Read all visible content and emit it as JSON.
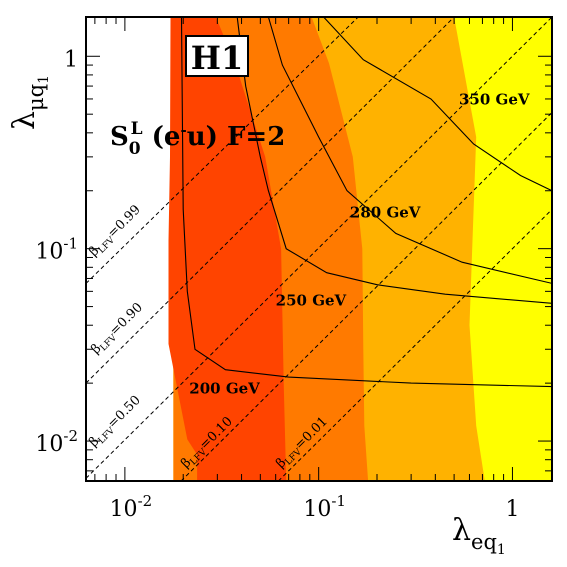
{
  "chart_data": {
    "type": "exclusion-region plot",
    "xscale": "log",
    "yscale": "log",
    "xlim": [
      0.0063,
      1.6
    ],
    "ylim": [
      0.0062,
      1.6
    ],
    "x_ticks": [
      {
        "value": 0.01,
        "mantissa": "10",
        "exp": "-2"
      },
      {
        "value": 0.1,
        "mantissa": "10",
        "exp": "-1"
      },
      {
        "value": 1,
        "mantissa": "1",
        "exp": ""
      }
    ],
    "y_ticks": [
      {
        "value": 0.01,
        "mantissa": "10",
        "exp": "-2"
      },
      {
        "value": 0.1,
        "mantissa": "10",
        "exp": "-1"
      },
      {
        "value": 1,
        "mantissa": "1",
        "exp": ""
      }
    ],
    "xlabel": {
      "main": "λ",
      "sub": "eq",
      "subsub": "1"
    },
    "ylabel": {
      "main": "λ",
      "sub": "μq",
      "subsub": "1"
    },
    "logo": "H1",
    "process": {
      "s": "S",
      "s_sub": "0",
      "s_sup": "L",
      "paren_open": " (e",
      "e_sup": "-",
      "rest": "u) F=2"
    },
    "colors": {
      "red": "#ff4400",
      "dark_orange": "#ff7a00",
      "orange": "#ffb200",
      "yellow": "#ffff00",
      "line": "#000000"
    },
    "regions": [
      {
        "color": "yellow",
        "points": [
          [
            0.0178,
            1.6
          ],
          [
            1.6,
            1.6
          ],
          [
            1.6,
            0.0062
          ],
          [
            0.0178,
            0.0062
          ]
        ]
      },
      {
        "color": "orange",
        "points": [
          [
            0.0178,
            1.6
          ],
          [
            0.5,
            1.6
          ],
          [
            0.65,
            0.38
          ],
          [
            0.62,
            0.1
          ],
          [
            0.6,
            0.04
          ],
          [
            0.65,
            0.012
          ],
          [
            0.72,
            0.0062
          ],
          [
            0.0178,
            0.0062
          ]
        ]
      },
      {
        "color": "dark_orange",
        "points": [
          [
            0.0178,
            1.6
          ],
          [
            0.092,
            1.6
          ],
          [
            0.113,
            0.92
          ],
          [
            0.15,
            0.3
          ],
          [
            0.168,
            0.1
          ],
          [
            0.17,
            0.03
          ],
          [
            0.172,
            0.012
          ],
          [
            0.18,
            0.0062
          ],
          [
            0.0178,
            0.0062
          ]
        ]
      },
      {
        "color": "red",
        "points": [
          [
            0.0178,
            1.6
          ],
          [
            0.0295,
            1.6
          ],
          [
            0.037,
            0.92
          ],
          [
            0.053,
            0.3
          ],
          [
            0.064,
            0.1
          ],
          [
            0.066,
            0.02
          ],
          [
            0.068,
            0.0062
          ],
          [
            0.0236,
            0.0062
          ],
          [
            0.0236,
            0.0085
          ],
          [
            0.021,
            0.0102
          ],
          [
            0.0168,
            0.032
          ],
          [
            0.0168,
            0.11
          ],
          [
            0.0171,
            0.3
          ],
          [
            0.0172,
            1.6
          ]
        ]
      }
    ],
    "mass_contours": [
      {
        "label": "200 GeV",
        "label_at": [
          0.0215,
          0.0177
        ],
        "points": [
          [
            0.0196,
            1.6
          ],
          [
            0.02,
            0.16
          ],
          [
            0.021,
            0.06
          ],
          [
            0.023,
            0.03
          ],
          [
            0.033,
            0.0235
          ],
          [
            0.07,
            0.0215
          ],
          [
            0.3,
            0.02
          ],
          [
            1.6,
            0.0192
          ]
        ]
      },
      {
        "label": "250 GeV",
        "label_at": [
          0.06,
          0.0505
        ],
        "points": [
          [
            0.038,
            1.6
          ],
          [
            0.042,
            0.7
          ],
          [
            0.05,
            0.3
          ],
          [
            0.055,
            0.2
          ],
          [
            0.068,
            0.1
          ],
          [
            0.11,
            0.075
          ],
          [
            0.2,
            0.065
          ],
          [
            0.45,
            0.058
          ],
          [
            1.6,
            0.052
          ]
        ]
      },
      {
        "label": "280 GeV",
        "label_at": [
          0.145,
          0.145
        ],
        "points": [
          [
            0.055,
            1.6
          ],
          [
            0.065,
            0.9
          ],
          [
            0.1,
            0.38
          ],
          [
            0.14,
            0.2
          ],
          [
            0.25,
            0.12
          ],
          [
            0.55,
            0.085
          ],
          [
            1.6,
            0.066
          ]
        ]
      },
      {
        "label": "350 GeV",
        "label_at": [
          0.53,
          0.56
        ],
        "points": [
          [
            0.106,
            1.6
          ],
          [
            0.17,
            0.96
          ],
          [
            0.38,
            0.6
          ],
          [
            0.63,
            0.35
          ],
          [
            1.1,
            0.24
          ],
          [
            1.6,
            0.2
          ]
        ]
      }
    ],
    "beta_lines": [
      {
        "label": "β",
        "label_sub": "LFV",
        "value": "=0.99",
        "points": [
          [
            0.0063,
            0.066
          ],
          [
            0.16,
            1.6
          ]
        ],
        "label_at": [
          0.00694,
          0.0907
        ]
      },
      {
        "label": "β",
        "label_sub": "LFV",
        "value": "=0.90",
        "points": [
          [
            0.0063,
            0.02
          ],
          [
            0.5,
            1.6
          ]
        ],
        "label_at": [
          0.00711,
          0.0282
        ]
      },
      {
        "label": "β",
        "label_sub": "LFV",
        "value": "=0.50",
        "points": [
          [
            0.0063,
            0.0064
          ],
          [
            1.6,
            1.6
          ]
        ],
        "label_at": [
          0.00694,
          0.00928
        ]
      },
      {
        "label": "β",
        "label_sub": "LFV",
        "value": "=0.10",
        "points": [
          [
            0.0195,
            0.0062
          ],
          [
            1.6,
            0.51
          ]
        ],
        "label_at": [
          0.0207,
          0.0072
        ]
      },
      {
        "label": "β",
        "label_sub": "LFV",
        "value": "=0.01",
        "points": [
          [
            0.062,
            0.0062
          ],
          [
            1.6,
            0.16
          ]
        ],
        "label_at": [
          0.064,
          0.0072
        ]
      }
    ]
  }
}
